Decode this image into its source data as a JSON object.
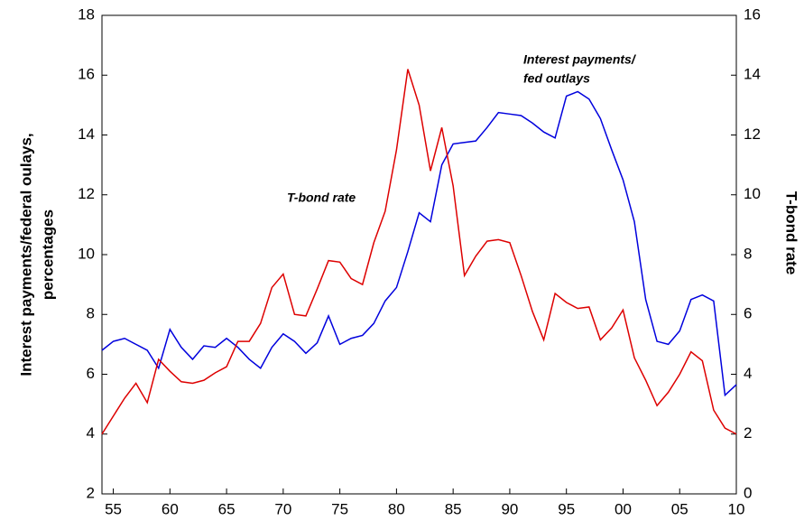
{
  "chart_data": {
    "type": "line",
    "ylabel": [
      "Interest payments/federal oulays,",
      "percentages"
    ],
    "y2label": "T-bond rate",
    "annotations": [
      {
        "text": [
          "Interest payments/",
          "fed outlays"
        ]
      },
      {
        "text": "T-bond rate"
      }
    ],
    "x": [
      1954,
      1955,
      1956,
      1957,
      1958,
      1959,
      1960,
      1961,
      1962,
      1963,
      1964,
      1965,
      1966,
      1967,
      1968,
      1969,
      1970,
      1971,
      1972,
      1973,
      1974,
      1975,
      1976,
      1977,
      1978,
      1979,
      1980,
      1981,
      1982,
      1983,
      1984,
      1985,
      1986,
      1987,
      1988,
      1989,
      1990,
      1991,
      1992,
      1993,
      1994,
      1995,
      1996,
      1997,
      1998,
      1999,
      2000,
      2001,
      2002,
      2003,
      2004,
      2005,
      2006,
      2007,
      2008,
      2009,
      2010
    ],
    "xlim": [
      1954,
      2010
    ],
    "xticks": [
      {
        "value": 1955,
        "label": "55"
      },
      {
        "value": 1960,
        "label": "60"
      },
      {
        "value": 1965,
        "label": "65"
      },
      {
        "value": 1970,
        "label": "70"
      },
      {
        "value": 1975,
        "label": "75"
      },
      {
        "value": 1980,
        "label": "80"
      },
      {
        "value": 1985,
        "label": "85"
      },
      {
        "value": 1990,
        "label": "90"
      },
      {
        "value": 1995,
        "label": "95"
      },
      {
        "value": 2000,
        "label": "00"
      },
      {
        "value": 2005,
        "label": "05"
      },
      {
        "value": 2010,
        "label": "10"
      }
    ],
    "ylim": [
      2,
      18
    ],
    "yticks": [
      2,
      4,
      6,
      8,
      10,
      12,
      14,
      16,
      18
    ],
    "y2lim": [
      0,
      16
    ],
    "y2ticks": [
      0,
      2,
      4,
      6,
      8,
      10,
      12,
      14,
      16
    ],
    "series": [
      {
        "color": "#0000dd",
        "axis": "y",
        "values": [
          6.8,
          7.1,
          7.2,
          7.0,
          6.8,
          6.2,
          7.5,
          6.9,
          6.5,
          6.95,
          6.9,
          7.2,
          6.9,
          6.5,
          6.2,
          6.9,
          7.35,
          7.1,
          6.7,
          7.05,
          7.95,
          7.0,
          7.2,
          7.3,
          7.7,
          8.45,
          8.9,
          10.1,
          11.4,
          11.1,
          13.0,
          13.7,
          13.75,
          13.8,
          14.25,
          14.75,
          14.7,
          14.65,
          14.4,
          14.1,
          13.9,
          15.3,
          15.45,
          15.2,
          14.55,
          13.5,
          12.5,
          11.1,
          8.5,
          7.1,
          7.0,
          7.45,
          8.5,
          8.65,
          8.45,
          5.3,
          5.65
        ]
      },
      {
        "color": "#dd0000",
        "axis": "y2",
        "values": [
          2.0,
          2.6,
          3.2,
          3.7,
          3.05,
          4.5,
          4.1,
          3.75,
          3.7,
          3.8,
          4.05,
          4.25,
          5.1,
          5.1,
          5.7,
          6.9,
          7.35,
          6.0,
          5.95,
          6.85,
          7.8,
          7.75,
          7.2,
          7.0,
          8.4,
          9.45,
          11.5,
          14.2,
          13.0,
          10.8,
          12.25,
          10.3,
          7.3,
          7.95,
          8.45,
          8.5,
          8.4,
          7.3,
          6.1,
          5.15,
          6.7,
          6.4,
          6.2,
          6.25,
          5.15,
          5.55,
          6.15,
          4.55,
          3.8,
          2.95,
          3.4,
          4.0,
          4.75,
          4.45,
          2.8,
          2.2,
          2.0
        ]
      }
    ]
  }
}
